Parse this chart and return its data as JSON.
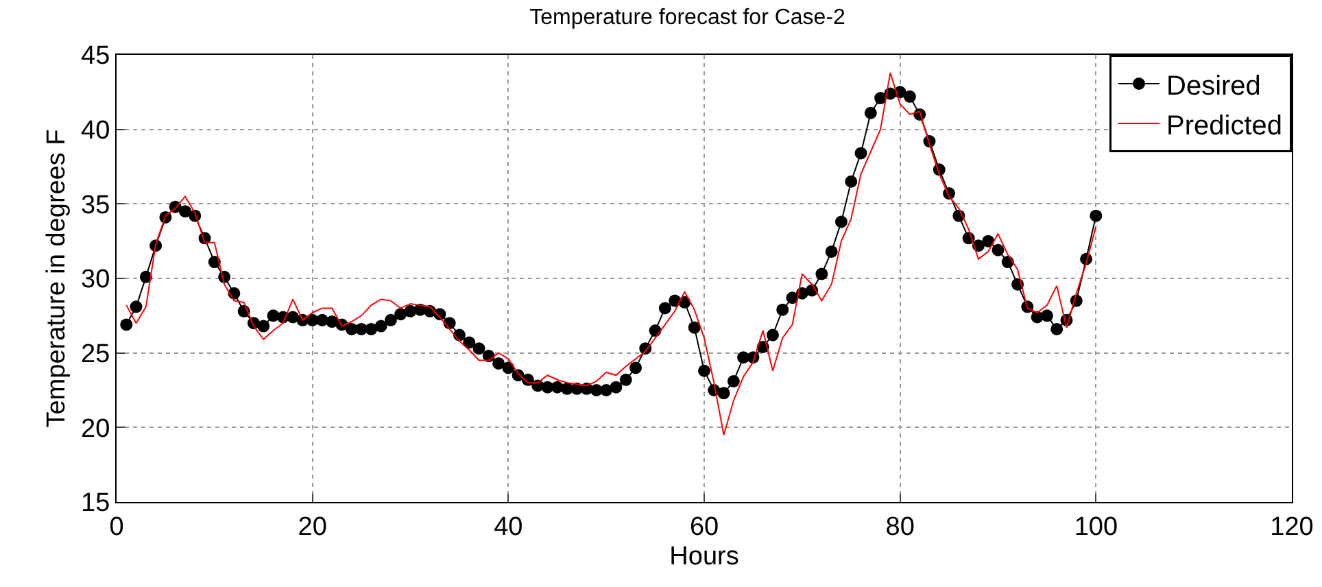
{
  "chart_data": {
    "type": "line",
    "title": "Temperature forecast for Case-2",
    "xlabel": "Hours",
    "ylabel": "Temperature in degrees F",
    "x": [
      1,
      2,
      3,
      4,
      5,
      6,
      7,
      8,
      9,
      10,
      11,
      12,
      13,
      14,
      15,
      16,
      17,
      18,
      19,
      20,
      21,
      22,
      23,
      24,
      25,
      26,
      27,
      28,
      29,
      30,
      31,
      32,
      33,
      34,
      35,
      36,
      37,
      38,
      39,
      40,
      41,
      42,
      43,
      44,
      45,
      46,
      47,
      48,
      49,
      50,
      51,
      52,
      53,
      54,
      55,
      56,
      57,
      58,
      59,
      60,
      61,
      62,
      63,
      64,
      65,
      66,
      67,
      68,
      69,
      70,
      71,
      72,
      73,
      74,
      75,
      76,
      77,
      78,
      79,
      80,
      81,
      82,
      83,
      84,
      85,
      86,
      87,
      88,
      89,
      90,
      91,
      92,
      93,
      94,
      95,
      96,
      97,
      98,
      99,
      100
    ],
    "series": [
      {
        "name": "Desired",
        "color": "#000000",
        "marker": "circle",
        "values": [
          26.9,
          28.1,
          30.1,
          32.2,
          34.1,
          34.8,
          34.5,
          34.2,
          32.7,
          31.1,
          30.1,
          29.0,
          27.8,
          27.0,
          26.8,
          27.5,
          27.4,
          27.4,
          27.2,
          27.2,
          27.2,
          27.1,
          26.9,
          26.6,
          26.6,
          26.6,
          26.8,
          27.2,
          27.6,
          27.8,
          27.9,
          27.8,
          27.6,
          27.0,
          26.2,
          25.7,
          25.3,
          24.8,
          24.3,
          24.0,
          23.5,
          23.2,
          22.8,
          22.7,
          22.7,
          22.6,
          22.6,
          22.6,
          22.5,
          22.5,
          22.7,
          23.2,
          24.0,
          25.3,
          26.5,
          28.0,
          28.5,
          28.4,
          26.7,
          23.8,
          22.5,
          22.3,
          23.1,
          24.7,
          24.7,
          25.4,
          26.2,
          27.9,
          28.7,
          29.0,
          29.2,
          30.3,
          31.8,
          33.8,
          36.5,
          38.4,
          41.1,
          42.1,
          42.4,
          42.5,
          42.2,
          41.0,
          39.2,
          37.3,
          35.7,
          34.2,
          32.7,
          32.2,
          32.5,
          31.9,
          31.1,
          29.6,
          28.1,
          27.4,
          27.5,
          26.6,
          27.2,
          28.5,
          31.3,
          34.2
        ]
      },
      {
        "name": "Predicted",
        "color": "#ff0000",
        "marker": "none",
        "values": [
          28.2,
          27.0,
          28.1,
          32.3,
          34.2,
          34.7,
          35.5,
          34.4,
          32.4,
          32.4,
          29.6,
          28.5,
          28.4,
          26.8,
          25.9,
          26.5,
          27.0,
          28.6,
          27.2,
          27.7,
          28.0,
          28.0,
          26.8,
          27.1,
          27.5,
          28.2,
          28.6,
          28.5,
          28.0,
          28.3,
          28.2,
          28.1,
          27.4,
          26.6,
          25.8,
          25.2,
          24.5,
          24.5,
          25.0,
          24.6,
          23.6,
          23.0,
          23.0,
          23.5,
          23.2,
          23.0,
          22.9,
          22.8,
          23.1,
          23.7,
          23.5,
          24.1,
          24.6,
          25.1,
          26.0,
          26.9,
          27.8,
          29.1,
          27.9,
          26.0,
          23.0,
          19.5,
          21.8,
          23.4,
          24.4,
          26.5,
          23.8,
          26.0,
          26.9,
          30.3,
          29.6,
          28.5,
          29.6,
          32.5,
          34.0,
          37.0,
          38.5,
          40.0,
          43.8,
          41.7,
          41.0,
          41.2,
          39.0,
          37.0,
          35.5,
          34.7,
          33.3,
          31.3,
          31.8,
          33.0,
          31.6,
          30.6,
          28.0,
          27.7,
          28.2,
          29.5,
          26.7,
          29.0,
          31.0,
          33.5
        ]
      }
    ],
    "xlim": [
      0,
      120
    ],
    "xticks": [
      0,
      20,
      40,
      60,
      80,
      100,
      120
    ],
    "ylim": [
      15,
      45
    ],
    "yticks": [
      15,
      20,
      25,
      30,
      35,
      40,
      45
    ],
    "grid": true,
    "legend": "top right",
    "line_style": "solid"
  }
}
